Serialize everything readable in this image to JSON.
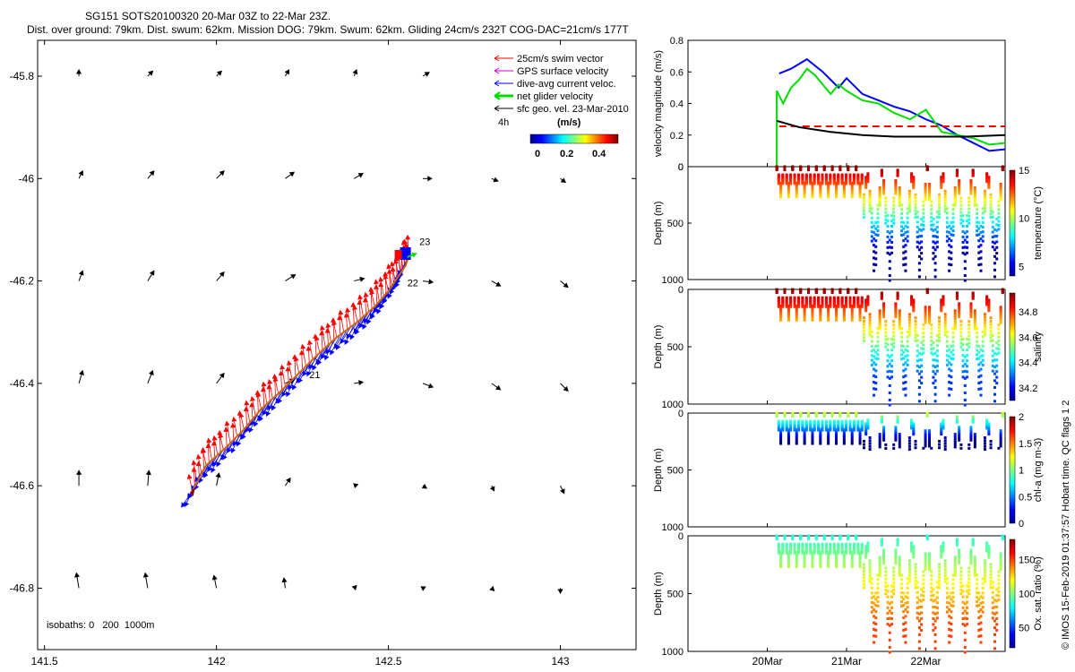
{
  "title_line1": "SG151 SOTS20100320 20-Mar 03Z to 22-Mar 23Z.",
  "title_line2": "Dist. over ground: 79km. Dist. swum: 62km. Mission DOG: 79km. Swum: 62km. Gliding 24cm/s 232T COG-DAC=21cm/s 177T",
  "side_text": "© IMOS 15-Feb-2019 01:37:57 Hobart time. QC flags 1  2",
  "map": {
    "xlim": [
      141.48,
      143.22
    ],
    "ylim": [
      -46.92,
      -45.73
    ],
    "xticks": [
      141.5,
      142,
      142.5,
      143
    ],
    "xtick_labels": [
      "141.5",
      "142",
      "142.5",
      "143"
    ],
    "yticks": [
      -45.8,
      -46,
      -46.2,
      -46.4,
      -46.6,
      -46.8
    ],
    "ytick_labels": [
      "-45.8",
      "-46",
      "-46.2",
      "-46.4",
      "-46.6",
      "-46.8"
    ],
    "legend": [
      {
        "label": "25cm/s swim vector",
        "color": "#ff0000"
      },
      {
        "label": "GPS surface velocity",
        "color": "#cc00cc"
      },
      {
        "label": "dive-avg current veloc.",
        "color": "#0000ff"
      },
      {
        "label": "net glider velocity",
        "color": "#00dd00"
      },
      {
        "label": "sfc geo. vel. 23-Mar-2010",
        "color": "#000000"
      }
    ],
    "colorbar_label_4h": "4h",
    "colorbar_unit": "(m/s)",
    "colorbar_ticks": [
      "0",
      "0.2",
      "0.4"
    ],
    "isobaths": "isobaths: 0   200  1000m",
    "day_labels": [
      {
        "text": "21",
        "lon": 142.27,
        "lat": -46.39
      },
      {
        "text": "22",
        "lon": 142.555,
        "lat": -46.21
      },
      {
        "text": "23",
        "lon": 142.59,
        "lat": -46.13
      }
    ],
    "track": [
      [
        141.93,
        -46.61
      ],
      [
        141.97,
        -46.56
      ],
      [
        142.02,
        -46.53
      ],
      [
        142.08,
        -46.49
      ],
      [
        142.13,
        -46.45
      ],
      [
        142.18,
        -46.42
      ],
      [
        142.24,
        -46.38
      ],
      [
        142.3,
        -46.34
      ],
      [
        142.35,
        -46.31
      ],
      [
        142.41,
        -46.28
      ],
      [
        142.46,
        -46.25
      ],
      [
        142.5,
        -46.22
      ],
      [
        142.53,
        -46.19
      ],
      [
        142.55,
        -46.17
      ],
      [
        142.56,
        -46.15
      ]
    ],
    "current_vectors": [
      [
        [
          141.6,
          -45.8
        ],
        0.0,
        0.5
      ],
      [
        [
          141.8,
          -45.8
        ],
        0.4,
        0.4
      ],
      [
        [
          142.0,
          -45.8
        ],
        0.4,
        0.4
      ],
      [
        [
          142.2,
          -45.8
        ],
        0.3,
        0.5
      ],
      [
        [
          142.4,
          -45.8
        ],
        0.2,
        0.5
      ],
      [
        [
          142.6,
          -45.8
        ],
        0.5,
        0.3
      ],
      [
        [
          141.6,
          -46.0
        ],
        0.3,
        0.6
      ],
      [
        [
          141.8,
          -46.0
        ],
        0.5,
        0.6
      ],
      [
        [
          142.0,
          -46.0
        ],
        0.6,
        0.6
      ],
      [
        [
          142.2,
          -46.0
        ],
        0.7,
        0.5
      ],
      [
        [
          142.4,
          -46.0
        ],
        0.7,
        0.4
      ],
      [
        [
          142.6,
          -46.0
        ],
        0.7,
        0.0
      ],
      [
        [
          142.8,
          -46.0
        ],
        0.5,
        -0.2
      ],
      [
        [
          143.0,
          -46.0
        ],
        0.4,
        -0.3
      ],
      [
        [
          141.6,
          -46.2
        ],
        0.3,
        0.8
      ],
      [
        [
          141.8,
          -46.2
        ],
        0.5,
        0.8
      ],
      [
        [
          142.0,
          -46.2
        ],
        0.6,
        0.7
      ],
      [
        [
          142.2,
          -46.2
        ],
        0.8,
        0.5
      ],
      [
        [
          142.4,
          -46.2
        ],
        0.8,
        0.2
      ],
      [
        [
          142.6,
          -46.2
        ],
        0.8,
        -0.1
      ],
      [
        [
          142.8,
          -46.2
        ],
        0.7,
        -0.4
      ],
      [
        [
          143.0,
          -46.2
        ],
        0.6,
        -0.5
      ],
      [
        [
          141.6,
          -46.4
        ],
        0.3,
        1.0
      ],
      [
        [
          141.8,
          -46.4
        ],
        0.4,
        1.0
      ],
      [
        [
          142.0,
          -46.4
        ],
        0.6,
        0.8
      ],
      [
        [
          142.2,
          -46.4
        ],
        0.7,
        0.3
      ],
      [
        [
          142.4,
          -46.4
        ],
        0.7,
        0.1
      ],
      [
        [
          142.6,
          -46.4
        ],
        0.8,
        -0.3
      ],
      [
        [
          142.8,
          -46.4
        ],
        0.7,
        -0.5
      ],
      [
        [
          143.0,
          -46.4
        ],
        0.6,
        -0.6
      ],
      [
        [
          141.6,
          -46.6
        ],
        0.0,
        1.2
      ],
      [
        [
          141.8,
          -46.6
        ],
        0.1,
        1.2
      ],
      [
        [
          142.0,
          -46.6
        ],
        0.2,
        1.0
      ],
      [
        [
          142.2,
          -46.6
        ],
        0.4,
        0.6
      ],
      [
        [
          142.4,
          -46.6
        ],
        0.3,
        0.1
      ],
      [
        [
          142.6,
          -46.6
        ],
        0.3,
        -0.2
      ],
      [
        [
          142.8,
          -46.6
        ],
        0.2,
        -0.4
      ],
      [
        [
          143.0,
          -46.6
        ],
        0.3,
        -0.6
      ],
      [
        [
          141.6,
          -46.8
        ],
        -0.2,
        1.2
      ],
      [
        [
          141.8,
          -46.8
        ],
        -0.2,
        1.2
      ],
      [
        [
          142.0,
          -46.8
        ],
        -0.2,
        1.0
      ],
      [
        [
          142.2,
          -46.8
        ],
        -0.1,
        0.8
      ],
      [
        [
          142.4,
          -46.8
        ],
        0.2,
        0.2
      ],
      [
        [
          142.6,
          -46.8
        ],
        0.2,
        0.1
      ],
      [
        [
          142.8,
          -46.8
        ],
        0.2,
        -0.2
      ],
      [
        [
          143.0,
          -46.8
        ],
        0.0,
        -0.4
      ]
    ]
  },
  "chart_data": [
    {
      "type": "line",
      "ylabel": "velocity magnitude (m/s)",
      "ylim": [
        0,
        0.8
      ],
      "yticks": [
        "0",
        "0.2",
        "0.4",
        "0.6",
        "0.8"
      ],
      "xlim_days": [
        19.0,
        23.0
      ],
      "series": [
        {
          "color": "#0000ff",
          "x": [
            20.15,
            20.3,
            20.5,
            20.7,
            20.9,
            21.0,
            21.2,
            21.4,
            21.6,
            21.8,
            22.0,
            22.2,
            22.4,
            22.6,
            22.8,
            23.0
          ],
          "y": [
            0.59,
            0.62,
            0.68,
            0.6,
            0.5,
            0.56,
            0.46,
            0.42,
            0.38,
            0.35,
            0.3,
            0.26,
            0.2,
            0.15,
            0.1,
            0.11
          ]
        },
        {
          "color": "#00dd00",
          "x": [
            20.12,
            20.12,
            20.2,
            20.3,
            20.4,
            20.5,
            20.6,
            20.7,
            20.8,
            20.9,
            21.0,
            21.2,
            21.4,
            21.6,
            21.8,
            22.0,
            22.2,
            22.4,
            22.6,
            22.8,
            23.0
          ],
          "y": [
            0.0,
            0.48,
            0.4,
            0.5,
            0.55,
            0.62,
            0.58,
            0.52,
            0.46,
            0.52,
            0.48,
            0.42,
            0.4,
            0.34,
            0.3,
            0.36,
            0.22,
            0.2,
            0.18,
            0.14,
            0.15
          ]
        },
        {
          "color": "#ff0000",
          "dash": true,
          "x": [
            20.15,
            23.0
          ],
          "y": [
            0.255,
            0.255
          ]
        },
        {
          "color": "#000000",
          "x": [
            20.12,
            20.4,
            20.8,
            21.2,
            21.6,
            22.0,
            22.5,
            23.0
          ],
          "y": [
            0.29,
            0.25,
            0.22,
            0.2,
            0.19,
            0.19,
            0.19,
            0.2
          ]
        }
      ]
    },
    {
      "type": "scatter",
      "ylabel": "Depth (m)",
      "cbar_label": "temperature (°C)",
      "ylim": [
        1000,
        0
      ],
      "yticks": [
        "0",
        "500",
        "1000"
      ],
      "clim": [
        4,
        15
      ],
      "cbar_ticks": [
        "5",
        "10",
        "15"
      ],
      "profile": {
        "surface": 15,
        "deep": 4.2
      }
    },
    {
      "type": "scatter",
      "ylabel": "Depth (m)",
      "cbar_label": "salinity",
      "ylim": [
        1000,
        0
      ],
      "yticks": [
        "0",
        "500",
        "1000"
      ],
      "clim": [
        34.1,
        34.95
      ],
      "cbar_ticks": [
        "34.2",
        "34.4",
        "34.6",
        "34.8"
      ],
      "profile": {
        "surface": 34.95,
        "deep": 34.25
      }
    },
    {
      "type": "scatter",
      "ylabel": "Depth (m)",
      "cbar_label": "chl-a (mg m-3)",
      "ylim": [
        1000,
        0
      ],
      "yticks": [
        "0",
        "500",
        "1000"
      ],
      "clim": [
        0,
        2
      ],
      "cbar_ticks": [
        "0",
        "0.5",
        "1",
        "1.5",
        "2"
      ],
      "profile": {
        "surface": 1.2,
        "deep": 0.0
      }
    },
    {
      "type": "scatter",
      "ylabel": "Depth (m)",
      "xlabel_ticks": [
        "20Mar",
        "21Mar",
        "22Mar"
      ],
      "cbar_label": "Ox. sat. ratio (%)",
      "ylim": [
        1000,
        0
      ],
      "yticks": [
        "0",
        "500",
        "1000"
      ],
      "clim": [
        20,
        180
      ],
      "cbar_ticks": [
        "50",
        "100",
        "150"
      ],
      "profile": {
        "surface": 85,
        "deep": 150
      }
    }
  ]
}
